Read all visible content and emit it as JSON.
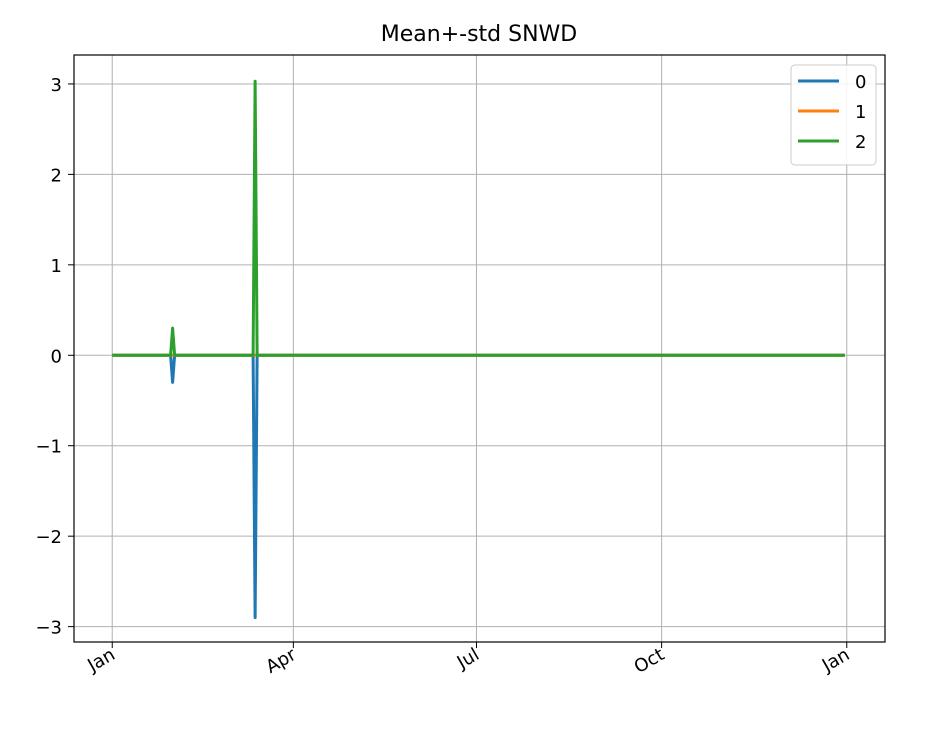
{
  "chart_data": {
    "type": "line",
    "title": "Mean+-std   SNWD",
    "xlabel": "",
    "ylabel": "",
    "x_axis": {
      "ticks": [
        "2021-01-01",
        "2021-04-01",
        "2021-07-01",
        "2021-10-01",
        "2022-01-01"
      ],
      "tick_labels": [
        "Jan",
        "Apr",
        "Jul",
        "Oct",
        "Jan"
      ],
      "xlim": [
        "2020-12-13",
        "2022-01-20"
      ]
    },
    "y_axis": {
      "ticks": [
        -3,
        -2,
        -1,
        0,
        1,
        2,
        3
      ],
      "tick_labels": [
        "−3",
        "−2",
        "−1",
        "0",
        "1",
        "2",
        "3"
      ],
      "ylim": [
        -3.17,
        3.32
      ]
    },
    "grid": true,
    "legend": {
      "placement": "top-right",
      "entries": [
        "0",
        "1",
        "2"
      ]
    },
    "series": [
      {
        "name": "0",
        "color": "#1f77b4",
        "points": [
          [
            "2021-01-01",
            0
          ],
          [
            "2021-01-30",
            0
          ],
          [
            "2021-01-31",
            -0.3
          ],
          [
            "2021-02-01",
            0
          ],
          [
            "2021-03-12",
            0
          ],
          [
            "2021-03-13",
            -2.9
          ],
          [
            "2021-03-14",
            0
          ],
          [
            "2021-12-31",
            0
          ]
        ]
      },
      {
        "name": "1",
        "color": "#ff7f0e",
        "points": [
          [
            "2021-01-01",
            0
          ],
          [
            "2021-12-31",
            0
          ]
        ]
      },
      {
        "name": "2",
        "color": "#2ca02c",
        "points": [
          [
            "2021-01-01",
            0
          ],
          [
            "2021-01-30",
            0
          ],
          [
            "2021-01-31",
            0.3
          ],
          [
            "2021-02-01",
            0
          ],
          [
            "2021-03-12",
            0
          ],
          [
            "2021-03-13",
            3.03
          ],
          [
            "2021-03-14",
            0
          ],
          [
            "2021-12-31",
            0
          ]
        ]
      }
    ]
  }
}
